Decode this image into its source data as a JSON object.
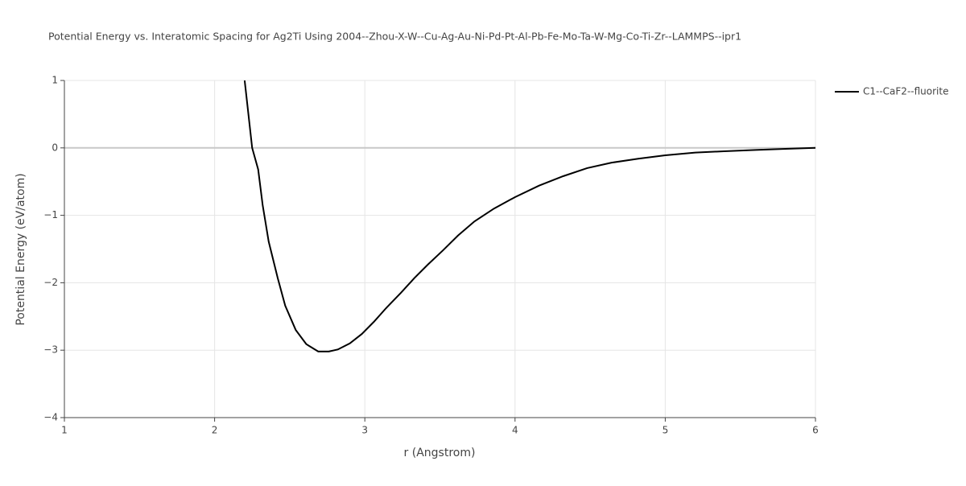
{
  "chart_data": {
    "type": "line",
    "title": "Potential Energy vs. Interatomic Spacing for Ag2Ti Using 2004--Zhou-X-W--Cu-Ag-Au-Ni-Pd-Pt-Al-Pb-Fe-Mo-Ta-W-Mg-Co-Ti-Zr--LAMMPS--ipr1",
    "x_label": "r (Angstrom)",
    "y_label": "Potential Energy (eV/atom)",
    "x": [
      2.2,
      2.25,
      2.29,
      2.32,
      2.36,
      2.42,
      2.47,
      2.54,
      2.61,
      2.69,
      2.76,
      2.82,
      2.9,
      2.98,
      3.06,
      3.14,
      3.24,
      3.33,
      3.42,
      3.52,
      3.62,
      3.73,
      3.86,
      4.0,
      4.16,
      4.32,
      4.48,
      4.64,
      4.82,
      5.0,
      5.2,
      5.39,
      5.6,
      5.8,
      6.0
    ],
    "series": [
      {
        "name": "C1--CaF2--fluorite",
        "color": "#000000",
        "values": [
          1.0,
          0.0,
          -0.32,
          -0.85,
          -1.39,
          -1.93,
          -2.34,
          -2.7,
          -2.91,
          -3.02,
          -3.02,
          -2.99,
          -2.9,
          -2.76,
          -2.58,
          -2.38,
          -2.15,
          -1.93,
          -1.73,
          -1.52,
          -1.3,
          -1.09,
          -0.9,
          -0.73,
          -0.56,
          -0.42,
          -0.3,
          -0.22,
          -0.16,
          -0.11,
          -0.07,
          -0.05,
          -0.03,
          -0.015,
          0.0
        ]
      }
    ],
    "xlim": [
      1,
      6
    ],
    "xticks": [
      1,
      2,
      3,
      4,
      5,
      6
    ],
    "ylim": [
      -4,
      1
    ],
    "yticks": [
      {
        "value": -4,
        "label": "−4"
      },
      {
        "value": -3,
        "label": "−3"
      },
      {
        "value": -2,
        "label": "−2"
      },
      {
        "value": -1,
        "label": "−1"
      },
      0,
      1
    ],
    "grid": true,
    "legend": "right"
  }
}
